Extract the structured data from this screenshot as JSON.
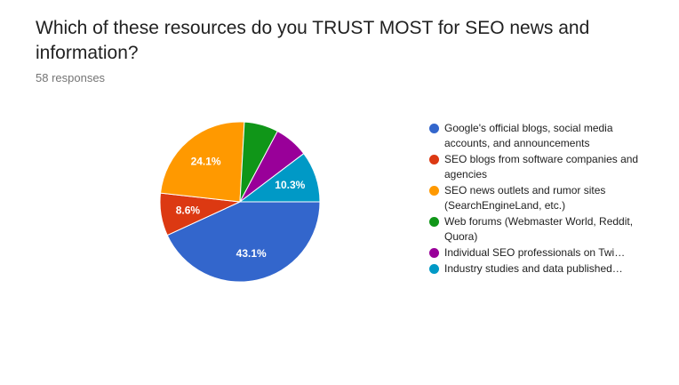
{
  "chart_data": {
    "type": "pie",
    "title": "Which of these resources do you TRUST MOST for SEO news and information?",
    "subtitle": "58 responses",
    "legend_position": "right",
    "slices": [
      {
        "name": "Google's official blogs, social media accounts, and announcements",
        "value": 43.1,
        "label": "43.1%",
        "color": "#3366cc"
      },
      {
        "name": "SEO blogs from software companies and agencies",
        "value": 8.6,
        "label": "8.6%",
        "color": "#dc3912"
      },
      {
        "name": "SEO news outlets and rumor sites (SearchEngineLand, etc.)",
        "value": 24.1,
        "label": "24.1%",
        "color": "#ff9900"
      },
      {
        "name": "Web forums (Webmaster World, Reddit, Quora)",
        "value": 6.9,
        "label": "",
        "color": "#109618"
      },
      {
        "name": "Individual SEO professionals on Twi…",
        "value": 6.9,
        "label": "",
        "color": "#990099"
      },
      {
        "name": "Industry studies and data published…",
        "value": 10.3,
        "label": "10.3%",
        "color": "#0099c6"
      }
    ]
  }
}
